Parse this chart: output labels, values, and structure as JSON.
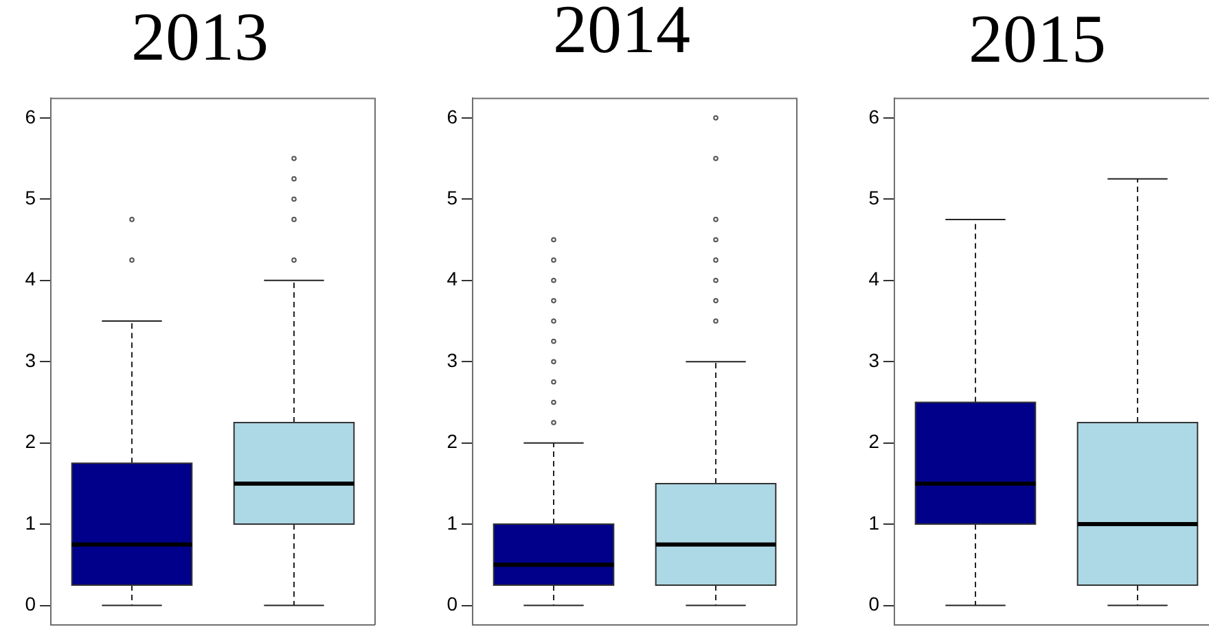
{
  "chart_data": [
    {
      "type": "box",
      "title": "2013",
      "categories": [
        null
      ],
      "series": [
        {
          "color": "#00008b",
          "boxes": [
            {
              "low": 0,
              "q1": 0.25,
              "median": 0.75,
              "q3": 1.75,
              "high": 3.5,
              "outliers": [
                4.25,
                4.75
              ]
            }
          ]
        },
        {
          "color": "#add8e6",
          "boxes": [
            {
              "low": 0,
              "q1": 1,
              "median": 1.5,
              "q3": 2.25,
              "high": 4,
              "outliers": [
                4.25,
                4.75,
                5,
                5.25,
                5.5
              ]
            }
          ]
        }
      ],
      "ylim": [
        -0.24,
        6.24
      ],
      "yticks": [
        0,
        1,
        2,
        3,
        4,
        5,
        6
      ]
    },
    {
      "type": "box",
      "title": "2014",
      "categories": [
        null
      ],
      "series": [
        {
          "color": "#00008b",
          "boxes": [
            {
              "low": 0,
              "q1": 0.25,
              "median": 0.5,
              "q3": 1,
              "high": 2,
              "outliers": [
                2.25,
                2.5,
                2.75,
                3,
                3.25,
                3.5,
                3.75,
                4,
                4.25,
                4.5
              ]
            }
          ]
        },
        {
          "color": "#add8e6",
          "boxes": [
            {
              "low": 0,
              "q1": 0.25,
              "median": 0.75,
              "q3": 1.5,
              "high": 3,
              "outliers": [
                3.5,
                3.75,
                4,
                4.25,
                4.5,
                4.75,
                5.5,
                6
              ]
            }
          ]
        }
      ],
      "ylim": [
        -0.24,
        6.24
      ],
      "yticks": [
        0,
        1,
        2,
        3,
        4,
        5,
        6
      ]
    },
    {
      "type": "box",
      "title": "2015",
      "categories": [
        null
      ],
      "series": [
        {
          "color": "#00008b",
          "boxes": [
            {
              "low": 0,
              "q1": 1,
              "median": 1.5,
              "q3": 2.5,
              "high": 4.75
            }
          ]
        },
        {
          "color": "#add8e6",
          "boxes": [
            {
              "low": 0,
              "q1": 0.25,
              "median": 1,
              "q3": 2.25,
              "high": 5.25
            }
          ]
        }
      ],
      "ylim": [
        -0.24,
        6.24
      ],
      "yticks": [
        0,
        1,
        2,
        3,
        4,
        5,
        6
      ]
    }
  ]
}
